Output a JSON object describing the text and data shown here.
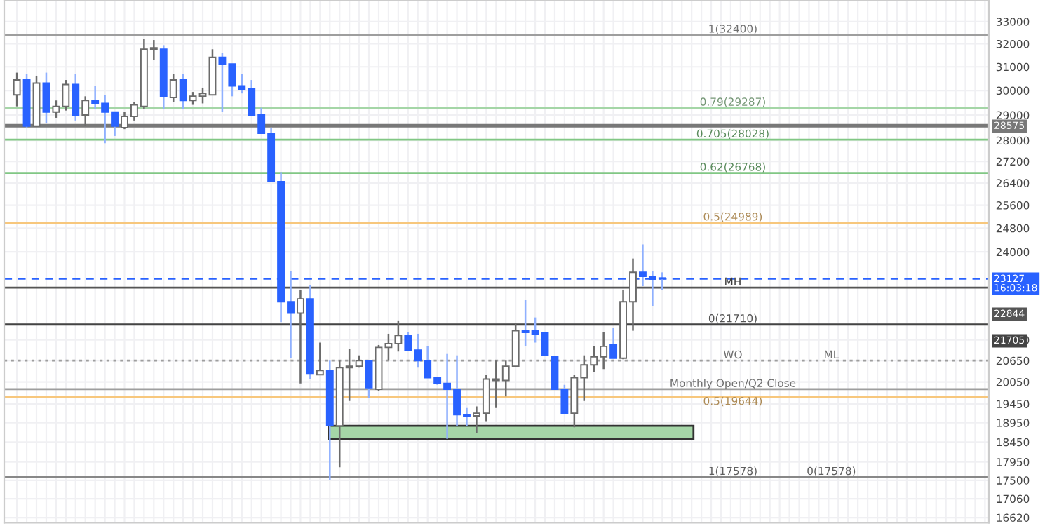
{
  "chart_data": {
    "type": "candlestick",
    "categories": [
      null,
      null,
      null,
      null,
      null,
      null,
      null,
      null,
      null,
      null,
      null,
      null,
      null,
      null,
      null,
      null,
      null,
      null,
      null,
      null,
      null,
      null,
      null,
      null,
      null,
      null,
      null,
      null,
      null,
      null,
      null,
      null,
      null,
      null,
      null,
      null,
      null,
      null,
      null,
      null,
      null,
      null,
      null,
      null,
      null,
      null,
      null,
      null,
      null,
      null,
      null,
      null,
      null,
      null,
      null,
      null,
      null,
      null,
      null,
      null,
      null,
      null,
      null,
      null,
      null,
      null,
      null,
      null,
      null,
      null,
      null,
      null,
      null,
      null,
      null,
      null,
      null,
      null,
      null,
      null,
      null,
      null,
      null,
      null,
      null,
      null,
      null,
      null,
      null,
      null,
      null,
      null,
      null,
      null,
      null,
      null,
      null,
      null,
      null,
      null
    ],
    "ohlc": [
      [
        29820,
        30750,
        29350,
        30440
      ],
      [
        30440,
        30690,
        28500,
        28560
      ],
      [
        28560,
        30620,
        28560,
        30310
      ],
      [
        30310,
        30750,
        28670,
        29120
      ],
      [
        29120,
        29590,
        28890,
        29350
      ],
      [
        29350,
        30440,
        29180,
        30250
      ],
      [
        30250,
        30690,
        28780,
        29000
      ],
      [
        29000,
        29760,
        28560,
        29590
      ],
      [
        29590,
        30190,
        29230,
        29470
      ],
      [
        29470,
        29820,
        27890,
        29120
      ],
      [
        29120,
        29120,
        28170,
        28560
      ],
      [
        28500,
        29120,
        28440,
        28940
      ],
      [
        28940,
        29530,
        28780,
        29410
      ],
      [
        29350,
        32230,
        29230,
        31760
      ],
      [
        31760,
        32170,
        31300,
        31820
      ],
      [
        31760,
        31940,
        29230,
        29760
      ],
      [
        29710,
        30690,
        29530,
        30440
      ],
      [
        30440,
        30690,
        29230,
        29590
      ],
      [
        29590,
        29940,
        29410,
        29760
      ],
      [
        29760,
        30120,
        29470,
        29880
      ],
      [
        29820,
        31760,
        29820,
        31410
      ],
      [
        31410,
        31590,
        29120,
        31120
      ],
      [
        31120,
        31120,
        29760,
        30190
      ],
      [
        30190,
        30690,
        29880,
        30060
      ],
      [
        30060,
        30440,
        29000,
        29000
      ],
      [
        29000,
        29290,
        28280,
        28280
      ],
      [
        28280,
        28500,
        26450,
        26450
      ],
      [
        26450,
        26800,
        21780,
        22400
      ],
      [
        22400,
        23380,
        20720,
        22050
      ],
      [
        22050,
        22760,
        20010,
        22490
      ],
      [
        22490,
        22930,
        20130,
        20290
      ],
      [
        20250,
        21170,
        20250,
        20370
      ],
      [
        20370,
        20650,
        17500,
        18870
      ],
      [
        18870,
        20650,
        17820,
        20450
      ],
      [
        20450,
        20990,
        19530,
        20490
      ],
      [
        20490,
        20800,
        20450,
        20650
      ],
      [
        20650,
        20650,
        19610,
        19890
      ],
      [
        19850,
        21100,
        19810,
        21030
      ],
      [
        21030,
        21430,
        20650,
        21140
      ],
      [
        21140,
        21830,
        20910,
        21380
      ],
      [
        21380,
        21470,
        20950,
        20950
      ],
      [
        20950,
        21430,
        20450,
        20650
      ],
      [
        20650,
        21060,
        20170,
        20170
      ],
      [
        20170,
        20170,
        19970,
        20010
      ],
      [
        20010,
        20840,
        18530,
        19850
      ],
      [
        19850,
        20800,
        18870,
        19160
      ],
      [
        19160,
        19340,
        18870,
        19130
      ],
      [
        19130,
        19380,
        18680,
        19200
      ],
      [
        19200,
        20250,
        18990,
        20130
      ],
      [
        20090,
        20650,
        19340,
        20130
      ],
      [
        20090,
        20650,
        19650,
        20490
      ],
      [
        20490,
        21740,
        20490,
        21520
      ],
      [
        21520,
        22450,
        21060,
        21470
      ],
      [
        21520,
        21920,
        21170,
        21430
      ],
      [
        21470,
        21470,
        20800,
        20800
      ],
      [
        20760,
        20760,
        19850,
        19850
      ],
      [
        19850,
        19970,
        19200,
        19200
      ],
      [
        19200,
        20250,
        18830,
        20170
      ],
      [
        20170,
        20800,
        19530,
        20530
      ],
      [
        20530,
        21060,
        20330,
        20760
      ],
      [
        20760,
        21470,
        20410,
        21060
      ],
      [
        21100,
        21600,
        20720,
        20720
      ],
      [
        20720,
        22760,
        20690,
        22400
      ],
      [
        22400,
        23780,
        21520,
        23330
      ],
      [
        23330,
        24250,
        22890,
        23200
      ],
      [
        23200,
        23380,
        22270,
        23110
      ],
      [
        23150,
        23330,
        22760,
        23127
      ],
      null,
      null,
      null,
      null,
      null,
      null,
      null,
      null,
      null,
      null,
      null,
      null,
      null,
      null,
      null,
      null,
      null,
      null,
      null,
      null,
      null,
      null,
      null,
      null,
      null,
      null,
      null,
      null,
      null,
      null,
      null,
      null,
      null
    ],
    "log": "y",
    "ylim": [
      16500,
      34000
    ],
    "yticks": [
      33000,
      32000,
      31000,
      30000,
      29000,
      28000,
      27200,
      26400,
      25600,
      24800,
      24000,
      21250,
      20650,
      20050,
      19450,
      18950,
      18450,
      17950,
      17500,
      17060,
      16620
    ],
    "grid": true,
    "ref_lines": [
      {
        "axis": "y",
        "value": 32400,
        "color": "#9e9e9e"
      },
      {
        "axis": "y",
        "value": 29287,
        "color": "#a5d6a7"
      },
      {
        "axis": "y",
        "value": 28575,
        "label": "28575",
        "color": "#787878"
      },
      {
        "axis": "y",
        "value": 28028,
        "color": "#81c784"
      },
      {
        "axis": "y",
        "value": 26768,
        "color": "#81c784"
      },
      {
        "axis": "y",
        "value": 24989,
        "color": "#f7c77d"
      },
      {
        "axis": "y",
        "value": 23127,
        "label": "23127\n16:03:18",
        "color": "#2962ff",
        "line_style": "dashed"
      },
      {
        "axis": "y",
        "value": 22844,
        "label": "22844",
        "color": "#555555"
      },
      {
        "axis": "y",
        "value": 21710,
        "color": "#777777"
      },
      {
        "axis": "y",
        "value": 21705,
        "label": "21705",
        "color": "#444444"
      },
      {
        "axis": "y",
        "value": 20650,
        "color": "#9e9e9e",
        "line_style": "dotted"
      },
      {
        "axis": "y",
        "value": 19850,
        "color": "#9e9e9e"
      },
      {
        "axis": "y",
        "value": 19644,
        "color": "#f7c77d"
      },
      {
        "axis": "y",
        "value": 17578,
        "color": "#888888"
      }
    ],
    "bands": [
      {
        "axis": "y",
        "from": 18530,
        "to": 18870,
        "color": "#a5d6a7"
      }
    ],
    "annotations": [
      {
        "text": "1(32400)",
        "y": 32400
      },
      {
        "text": "0.79(29287)",
        "y": 29287
      },
      {
        "text": "0.705(28028)",
        "y": 28028
      },
      {
        "text": "0.62(26768)",
        "y": 26768
      },
      {
        "text": "0.5(24989)",
        "y": 24989
      },
      {
        "text": "MH",
        "y": 22844
      },
      {
        "text": "0(21710)",
        "y": 21710
      },
      {
        "text": "WO",
        "y": 20650
      },
      {
        "text": "ML",
        "y": 20650
      },
      {
        "text": "Monthly Open/Q2 Close",
        "y": 19850
      },
      {
        "text": "0.5(19644)",
        "y": 19644
      },
      {
        "text": "1(17578)",
        "y": 17578
      },
      {
        "text": "0(17578)",
        "y": 17578
      }
    ]
  }
}
